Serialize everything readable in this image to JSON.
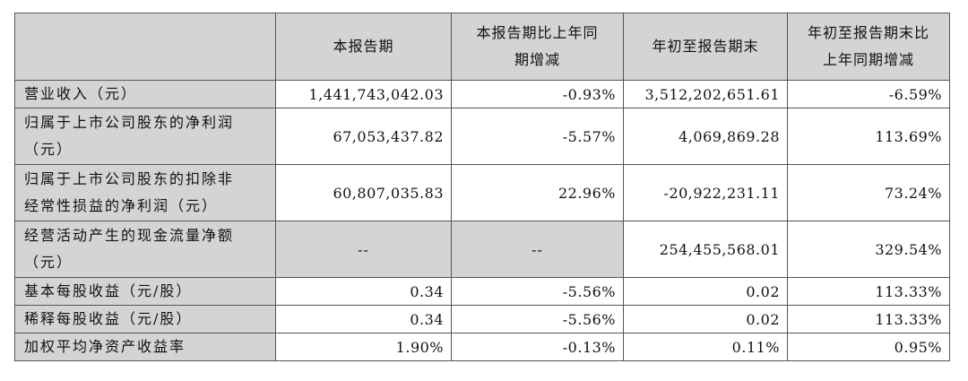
{
  "table": {
    "headers": [
      "",
      "本报告期",
      "本报告期比上年同期增减",
      "年初至报告期末",
      "年初至报告期末比上年同期增减"
    ],
    "header_lines": {
      "h1": [
        "本报告期"
      ],
      "h2": [
        "本报告期比上年同",
        "期增减"
      ],
      "h3": [
        "年初至报告期末"
      ],
      "h4": [
        "年初至报告期末比",
        "上年同期增减"
      ]
    },
    "rows": [
      {
        "label_lines": [
          "营业收入（元）"
        ],
        "values": [
          "1,441,743,042.03",
          "-0.93%",
          "3,512,202,651.61",
          "-6.59%"
        ]
      },
      {
        "label_lines": [
          "归属于上市公司股东的净利润",
          "（元）"
        ],
        "values": [
          "67,053,437.82",
          "-5.57%",
          "4,069,869.28",
          "113.69%"
        ]
      },
      {
        "label_lines": [
          "归属于上市公司股东的扣除非",
          "经常性损益的净利润（元）"
        ],
        "values": [
          "60,807,035.83",
          "22.96%",
          "-20,922,231.11",
          "73.24%"
        ]
      },
      {
        "label_lines": [
          "经营活动产生的现金流量净额",
          "（元）"
        ],
        "values": [
          "--",
          "--",
          "254,455,568.01",
          "329.54%"
        ]
      },
      {
        "label_lines": [
          "基本每股收益（元/股）"
        ],
        "values": [
          "0.34",
          "-5.56%",
          "0.02",
          "113.33%"
        ]
      },
      {
        "label_lines": [
          "稀释每股收益（元/股）"
        ],
        "values": [
          "0.34",
          "-5.56%",
          "0.02",
          "113.33%"
        ]
      },
      {
        "label_lines": [
          "加权平均净资产收益率"
        ],
        "values": [
          "1.90%",
          "-0.13%",
          "0.11%",
          "0.95%"
        ]
      }
    ]
  }
}
